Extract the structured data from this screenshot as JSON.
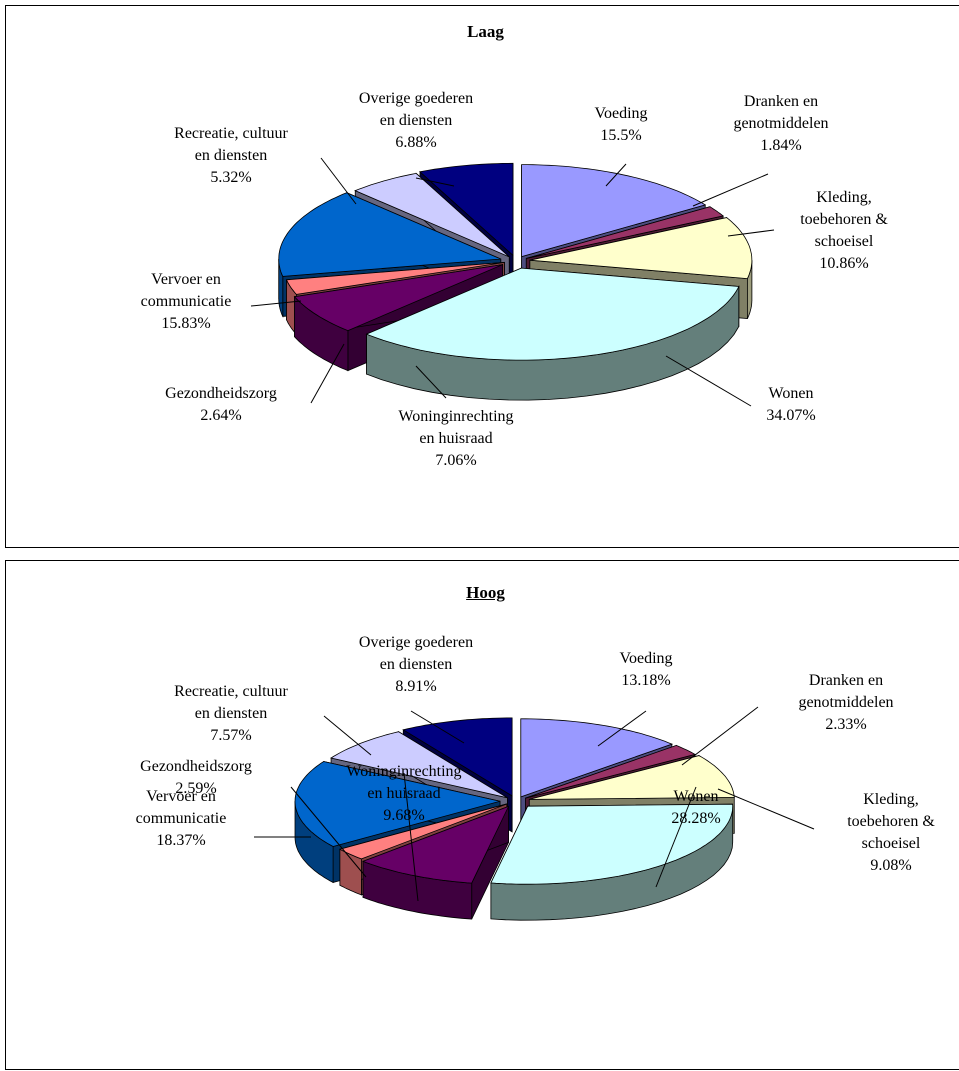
{
  "colors": {
    "voeding": "#9999ff",
    "dranken": "#993366",
    "kleding": "#ffffcc",
    "wonen": "#ccffff",
    "wonen_side": "#647f7b",
    "woninginrichting": "#660066",
    "gezondheidszorg": "#ff8080",
    "vervoer": "#0066cc",
    "recreatie": "#ccccff",
    "overige": "#000080"
  },
  "chart_data": [
    {
      "type": "pie",
      "title": "Laag",
      "slices": [
        {
          "key": "voeding",
          "label": [
            "Voeding"
          ],
          "value": 15.5,
          "value_label": "15.5%"
        },
        {
          "key": "dranken",
          "label": [
            "Dranken en",
            "genotmiddelen"
          ],
          "value": 1.84,
          "value_label": "1.84%"
        },
        {
          "key": "kleding",
          "label": [
            "Kleding,",
            "toebehoren &",
            "schoeisel"
          ],
          "value": 10.86,
          "value_label": "10.86%"
        },
        {
          "key": "wonen",
          "label": [
            "Wonen"
          ],
          "value": 34.07,
          "value_label": "34.07%"
        },
        {
          "key": "woninginrichting",
          "label": [
            "Woninginrechting",
            "en huisraad"
          ],
          "value": 7.06,
          "value_label": "7.06%"
        },
        {
          "key": "gezondheidszorg",
          "label": [
            "Gezondheidszorg"
          ],
          "value": 2.64,
          "value_label": "2.64%"
        },
        {
          "key": "vervoer",
          "label": [
            "Vervoer en",
            "communicatie"
          ],
          "value": 15.83,
          "value_label": "15.83%"
        },
        {
          "key": "recreatie",
          "label": [
            "Recreatie, cultuur",
            "en diensten"
          ],
          "value": 5.32,
          "value_label": "5.32%"
        },
        {
          "key": "overige",
          "label": [
            "Overige goederen",
            "en diensten"
          ],
          "value": 6.88,
          "value_label": "6.88%"
        }
      ]
    },
    {
      "type": "pie",
      "title": "Hoog",
      "slices": [
        {
          "key": "voeding",
          "label": [
            "Voeding"
          ],
          "value": 13.18,
          "value_label": "13.18%"
        },
        {
          "key": "dranken",
          "label": [
            "Dranken en",
            "genotmiddelen"
          ],
          "value": 2.33,
          "value_label": "2.33%"
        },
        {
          "key": "kleding",
          "label": [
            "Kleding,",
            "toebehoren &",
            "schoeisel"
          ],
          "value": 9.08,
          "value_label": "9.08%"
        },
        {
          "key": "wonen",
          "label": [
            "Wonen"
          ],
          "value": 28.28,
          "value_label": "28.28%"
        },
        {
          "key": "woninginrichting",
          "label": [
            "Woninginrechting",
            "en huisraad"
          ],
          "value": 9.68,
          "value_label": "9.68%"
        },
        {
          "key": "gezondheidszorg",
          "label": [
            "Gezondheidszorg"
          ],
          "value": 2.59,
          "value_label": "2.59%"
        },
        {
          "key": "vervoer",
          "label": [
            "Vervoer en",
            "communicatie"
          ],
          "value": 18.37,
          "value_label": "18.37%"
        },
        {
          "key": "recreatie",
          "label": [
            "Recreatie, cultuur",
            "en diensten"
          ],
          "value": 7.57,
          "value_label": "7.57%"
        },
        {
          "key": "overige",
          "label": [
            "Overige goederen",
            "en diensten"
          ],
          "value": 8.91,
          "value_label": "8.91%"
        }
      ]
    }
  ]
}
